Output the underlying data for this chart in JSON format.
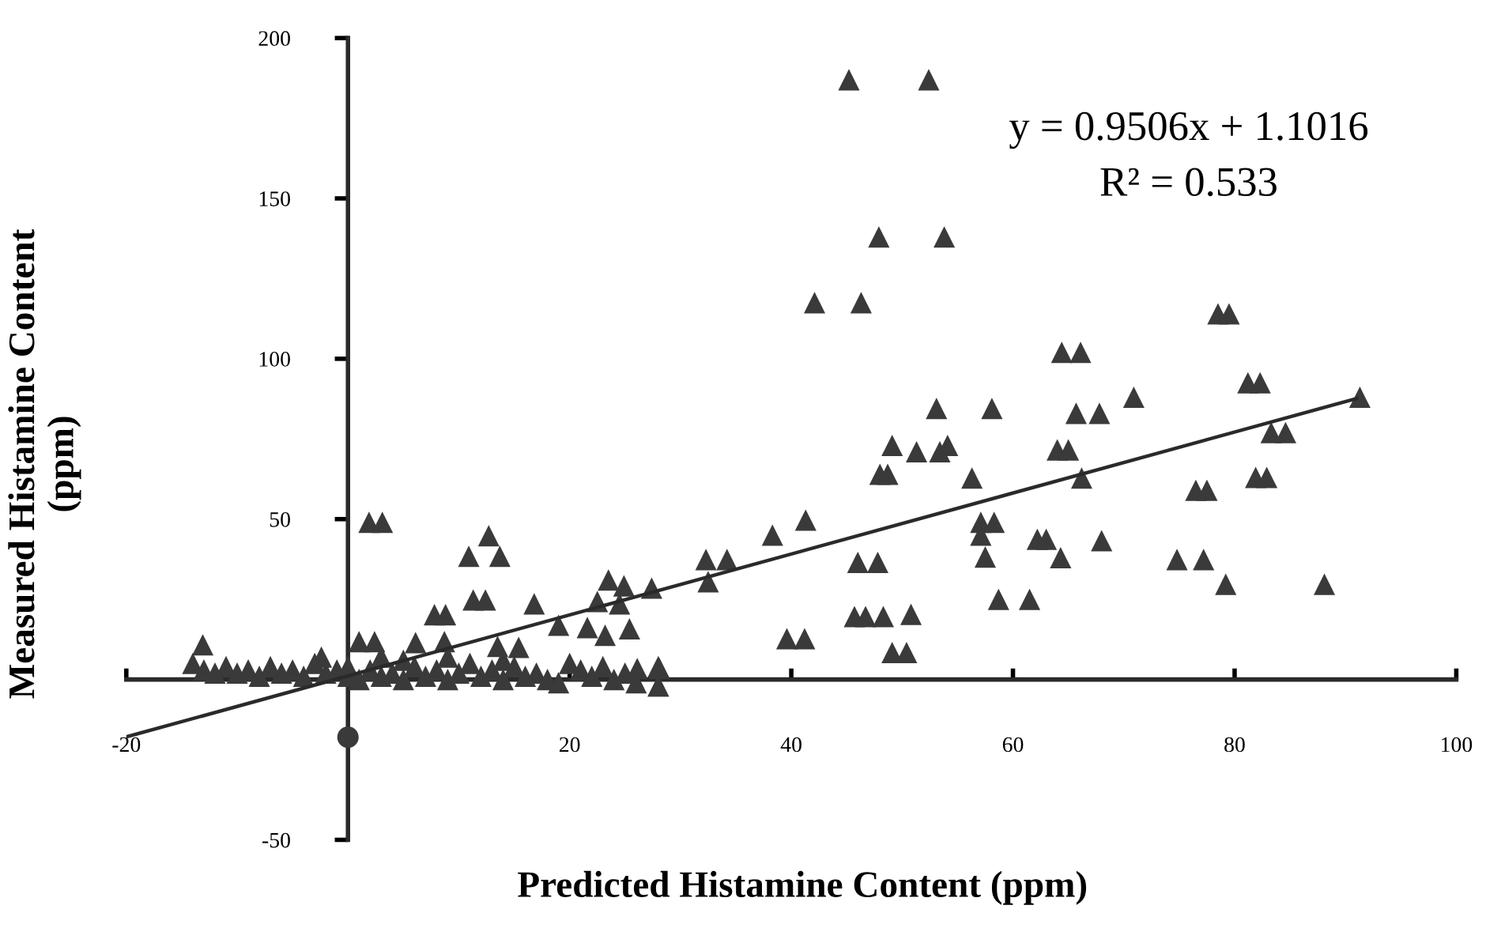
{
  "chart_data": {
    "type": "scatter",
    "xlabel": "Predicted Histamine Content (ppm)",
    "ylabel": "Measured Histamine Content\n(ppm)",
    "xlim": [
      -20,
      100
    ],
    "ylim": [
      -50,
      200
    ],
    "xticks": [
      -20,
      20,
      40,
      60,
      80,
      100
    ],
    "yticks": [
      -50,
      50,
      100,
      150,
      200
    ],
    "grid": false,
    "annotations": [
      "y = 0.9506x + 1.1016",
      "R² = 0.533"
    ],
    "series": [
      {
        "marker": "triangle",
        "color": "#3a3a3a",
        "x": [
          45.2,
          52.4,
          47.9,
          53.8,
          42.1,
          46.3,
          78.5,
          79.5,
          64.4,
          66.1,
          81.2,
          82.3,
          70.9,
          91.3,
          53.1,
          58.1,
          65.7,
          67.8,
          83.3,
          84.6,
          49.1,
          51.3,
          53.4,
          54.1,
          64,
          65,
          48,
          48.7,
          56.3,
          66.2,
          81.9,
          82.9,
          76.5,
          77.5,
          41.3,
          38.3,
          57.1,
          58.3,
          57.1,
          62.2,
          63,
          68,
          32.3,
          34.2,
          46,
          47.8,
          57.5,
          64.3,
          74.8,
          77.2,
          32.5,
          79.2,
          88.1,
          58.7,
          61.5,
          45.7,
          46.7,
          48.3,
          50.8,
          39.6,
          41.2,
          49.1,
          50.4,
          27.4,
          26.1,
          28.1,
          28,
          1.9,
          3.1,
          12.7,
          10.9,
          13.7,
          11.3,
          12.4,
          16.8,
          23.5,
          24.9,
          22.5,
          24.5,
          7.8,
          8.8,
          19,
          21.6,
          23.2,
          25.4,
          8.7,
          1,
          2.4,
          6.1,
          13.5,
          15.4,
          -13.1,
          -2.4,
          -14,
          -13,
          -12,
          -11,
          -10,
          -9,
          -8,
          -7,
          -6,
          -5,
          -4,
          -3,
          -2,
          -1,
          0,
          0,
          1,
          2,
          3,
          4,
          5,
          6,
          7,
          8,
          9,
          10,
          11,
          12,
          13,
          14,
          15,
          16,
          17,
          18,
          19,
          21,
          22,
          23,
          24,
          25,
          26,
          28,
          28,
          20,
          5,
          3,
          9,
          14
        ],
        "values": [
          187,
          187,
          138,
          138,
          117.5,
          117.5,
          114,
          114,
          102,
          102,
          92.5,
          92.5,
          88,
          88,
          84.5,
          84.5,
          83,
          83,
          77,
          77,
          73,
          71,
          71,
          73,
          71.6,
          71.6,
          64,
          64,
          62.8,
          62.8,
          63,
          63,
          59,
          59,
          49.7,
          45,
          49,
          49,
          45,
          43.7,
          43.7,
          43.3,
          37.4,
          37.4,
          36.5,
          36.5,
          38.2,
          38,
          37.4,
          37.4,
          30.5,
          29.7,
          29.7,
          25,
          25,
          19.6,
          19.6,
          19.6,
          20.3,
          12.7,
          12.7,
          8.4,
          8.4,
          28.5,
          3.4,
          3.4,
          -2,
          49,
          49,
          44.8,
          38.4,
          38.4,
          24.8,
          24.8,
          23.6,
          31,
          29.2,
          24.3,
          23.6,
          20.2,
          20.2,
          16.9,
          16.2,
          13.8,
          15.8,
          11.8,
          11.8,
          11.8,
          11.5,
          10.3,
          10,
          10.8,
          7,
          5,
          3,
          2,
          4,
          2,
          3,
          1,
          4,
          2,
          3,
          1,
          5,
          2,
          3,
          1,
          4,
          0,
          3,
          1,
          2,
          0,
          4,
          1,
          3,
          0,
          2,
          5,
          1,
          3,
          0,
          4,
          1,
          2,
          0,
          -1,
          3,
          1,
          4,
          0,
          2,
          -1,
          -2,
          4,
          5,
          6,
          7,
          7,
          6
        ]
      },
      {
        "marker": "circle",
        "color": "#3a3a3a",
        "x": [
          0
        ],
        "values": [
          -18
        ]
      },
      {
        "type": "line",
        "marker": "none",
        "color": "#2a2a2a",
        "x": [
          -20,
          91
        ],
        "values": [
          -17.9,
          87.6
        ]
      }
    ]
  }
}
